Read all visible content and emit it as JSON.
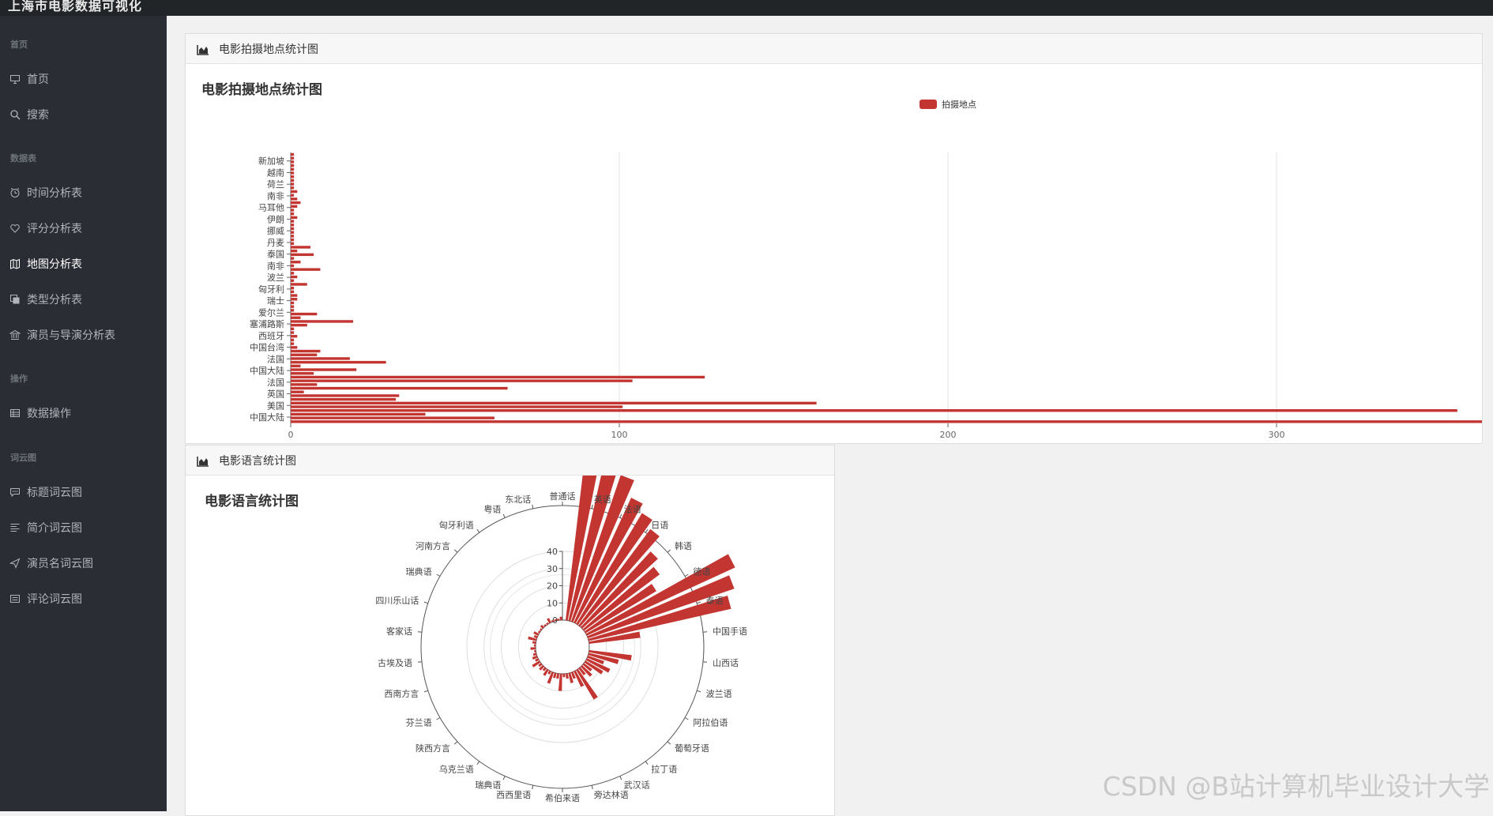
{
  "app": {
    "title": "上海市电影数据可视化"
  },
  "sidebar": {
    "sections": [
      {
        "title": "首页",
        "items": [
          {
            "label": "首页",
            "icon": "monitor-icon"
          },
          {
            "label": "搜索",
            "icon": "search-icon"
          }
        ]
      },
      {
        "title": "数据表",
        "items": [
          {
            "label": "时间分析表",
            "icon": "clock-icon"
          },
          {
            "label": "评分分析表",
            "icon": "heart-icon"
          },
          {
            "label": "地图分析表",
            "icon": "map-icon",
            "active": true
          },
          {
            "label": "类型分析表",
            "icon": "copy-icon"
          },
          {
            "label": "演员与导演分析表",
            "icon": "bank-icon"
          }
        ]
      },
      {
        "title": "操作",
        "items": [
          {
            "label": "数据操作",
            "icon": "table-icon"
          }
        ]
      },
      {
        "title": "词云图",
        "items": [
          {
            "label": "标题词云图",
            "icon": "comment-icon"
          },
          {
            "label": "简介词云图",
            "icon": "align-icon"
          },
          {
            "label": "演员名词云图",
            "icon": "send-icon"
          },
          {
            "label": "评论词云图",
            "icon": "list-icon"
          }
        ]
      }
    ]
  },
  "panels": {
    "location": {
      "header": "电影拍摄地点统计图",
      "icon": "area-chart-icon"
    },
    "language": {
      "header": "电影语言统计图",
      "icon": "area-chart-icon"
    }
  },
  "watermark": "CSDN @B站计算机毕业设计大学",
  "colors": {
    "bar": "#c23531",
    "sidebar": "#2a2d33",
    "topbar": "#222528"
  },
  "chart_data": [
    {
      "type": "bar",
      "orientation": "horizontal",
      "title": "电影拍摄地点统计图",
      "legend": {
        "entries": [
          "拍摄地点"
        ],
        "placement": "top-center"
      },
      "xlim": [
        0,
        365
      ],
      "xticks": [
        0,
        100,
        200,
        300
      ],
      "grid": "vertical",
      "category_labels": [
        "中国大陆",
        "美国",
        "英国",
        "法国",
        "中国大陆",
        "法国",
        "中国台湾",
        "西班牙",
        "塞浦路斯",
        "爱尔兰",
        "瑞士",
        "匈牙利",
        "波兰",
        "南非",
        "泰国",
        "丹麦",
        "挪威",
        "伊朗",
        "马耳他",
        "南非",
        "荷兰",
        "越南",
        "新加坡"
      ],
      "values": [
        366,
        62,
        41,
        355,
        101,
        160,
        32,
        33,
        4,
        66,
        8,
        104,
        126,
        7,
        20,
        3,
        29,
        18,
        8,
        9,
        2,
        1,
        1,
        2,
        1,
        1,
        5,
        19,
        3,
        8,
        1,
        1,
        1,
        2,
        2,
        1,
        1,
        5,
        1,
        2,
        1,
        9,
        1,
        3,
        1,
        7,
        2,
        6,
        1,
        1,
        1,
        1,
        1,
        1,
        1,
        2,
        1,
        1,
        2,
        3,
        2,
        1,
        2,
        1,
        1,
        1,
        1,
        1,
        1,
        1,
        1,
        1,
        1
      ]
    },
    {
      "type": "bar",
      "coordinate": "polar",
      "title": "电影语言统计图",
      "radial_ticks": [
        0,
        10,
        20,
        30,
        40
      ],
      "angle_labels": [
        "普通话",
        "英语",
        "法语",
        "日语",
        "韩语",
        "德语",
        "泰语",
        "中国手语",
        "山西话",
        "波兰语",
        "阿拉伯语",
        "葡萄牙语",
        "拉丁语",
        "武汉话",
        "旁达林语",
        "希伯来语",
        "西西里语",
        "瑞典语",
        "乌克兰语",
        "陕西方言",
        "芬兰语",
        "西南方言",
        "古埃及语",
        "客家话",
        "四川乐山话",
        "瑞典语",
        "河南方言",
        "匈牙利语",
        "粤语",
        "东北话"
      ],
      "values": [
        0,
        99,
        95,
        90,
        80,
        75,
        70,
        60,
        55,
        48,
        95,
        90,
        85,
        30,
        0,
        0,
        25,
        18,
        10,
        15,
        12,
        6,
        8,
        5,
        20,
        10,
        4,
        6,
        3,
        2,
        10,
        3,
        3,
        7,
        2,
        4,
        2,
        3,
        2,
        5,
        2,
        3,
        2,
        1,
        3,
        1,
        2,
        5,
        2,
        3,
        1,
        1,
        2,
        1,
        1,
        3,
        1,
        1,
        1,
        2
      ]
    }
  ]
}
